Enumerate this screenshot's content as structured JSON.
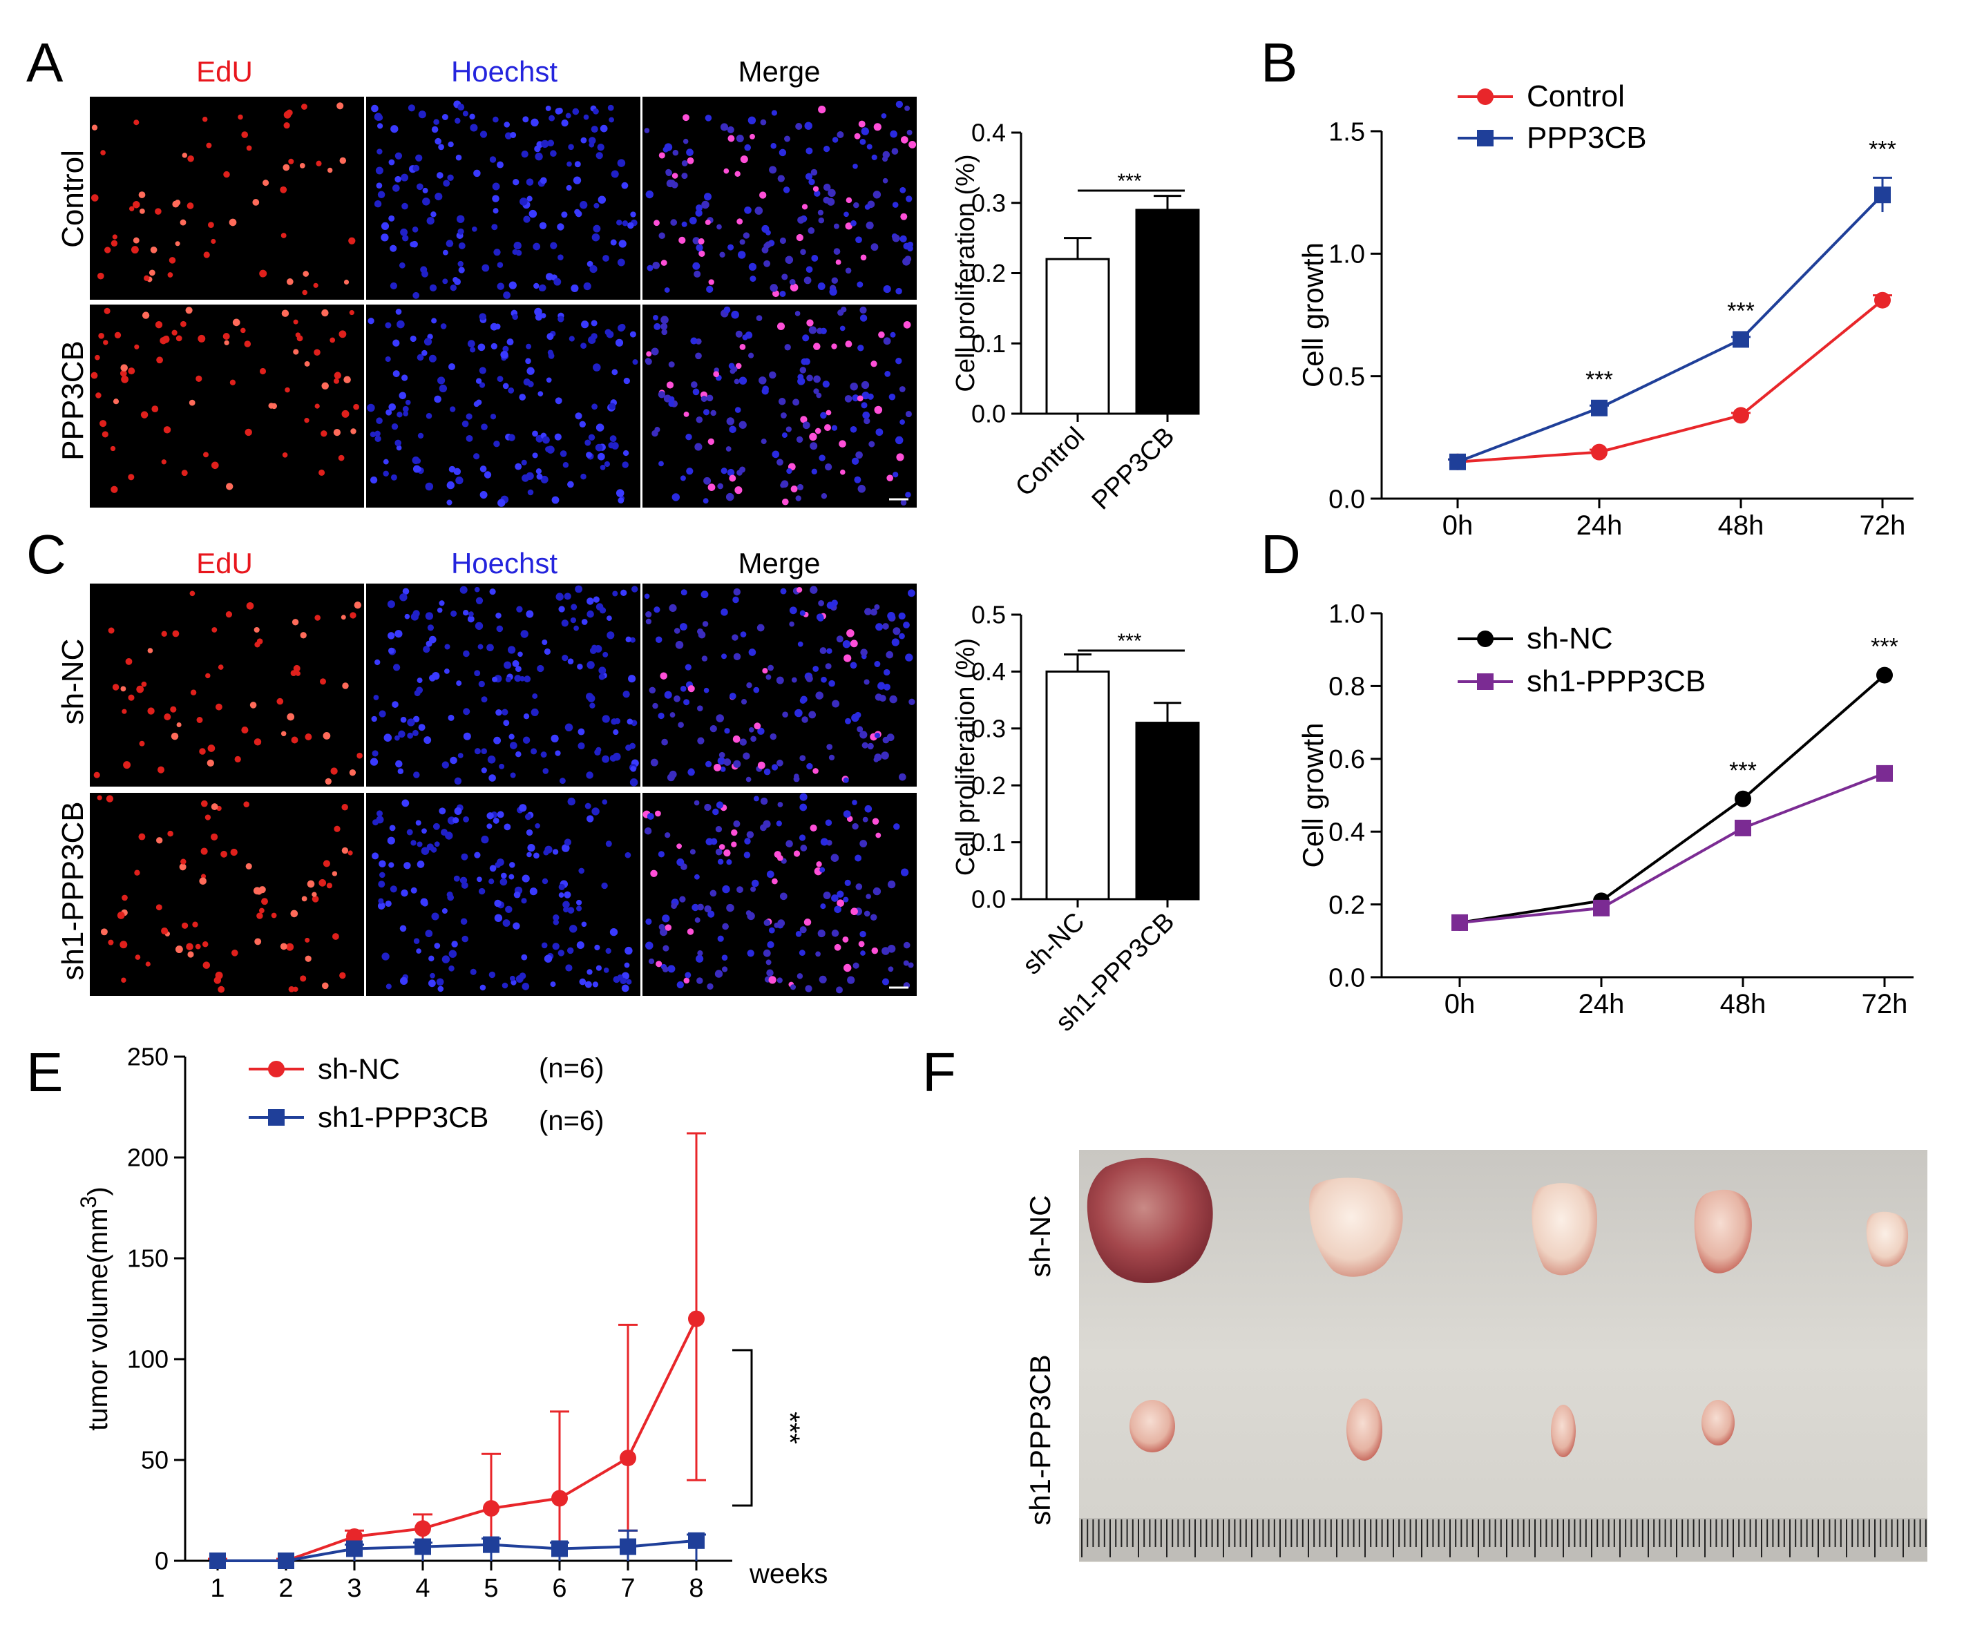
{
  "panels": {
    "A": {
      "letter": "A",
      "columns": [
        "EdU",
        "Hoechst",
        "Merge"
      ],
      "rows": [
        "Control",
        "PPP3CB"
      ],
      "colors": {
        "edu": "#e8161d",
        "hoechst": "#2222dd",
        "merge": "#000000"
      }
    },
    "C": {
      "letter": "C",
      "columns": [
        "EdU",
        "Hoechst",
        "Merge"
      ],
      "rows": [
        "sh-NC",
        "sh1-PPP3CB"
      ]
    },
    "F": {
      "letter": "F",
      "rows": [
        "sh-NC",
        "sh1-PPP3CB"
      ]
    }
  },
  "chart_data": [
    {
      "id": "A-bar",
      "type": "bar",
      "categories": [
        "Control",
        "PPP3CB"
      ],
      "values": [
        0.22,
        0.29
      ],
      "errors": [
        0.03,
        0.02
      ],
      "fills": [
        "#ffffff",
        "#000000"
      ],
      "ylabel": "Cell proliferation (%)",
      "ylim": [
        0,
        0.4
      ],
      "yticks": [
        0.0,
        0.1,
        0.2,
        0.3,
        0.4
      ],
      "ytick_labels": [
        "0.0",
        "0.1",
        "0.2",
        "0.3",
        "0.4"
      ],
      "significance": "***"
    },
    {
      "id": "B-line",
      "letter": "B",
      "type": "line",
      "x": [
        "0h",
        "24h",
        "48h",
        "72h"
      ],
      "series": [
        {
          "name": "Control",
          "values": [
            0.15,
            0.19,
            0.34,
            0.81
          ],
          "errors": [
            0.01,
            0.01,
            0.01,
            0.02
          ],
          "color": "#e8262a",
          "marker": "circle"
        },
        {
          "name": "PPP3CB",
          "values": [
            0.15,
            0.37,
            0.65,
            1.24
          ],
          "errors": [
            0.01,
            0.01,
            0.01,
            0.07
          ],
          "color": "#1f3f99",
          "marker": "square"
        }
      ],
      "ylabel": "Cell growth",
      "ylim": [
        0,
        1.5
      ],
      "yticks": [
        0.0,
        0.5,
        1.0,
        1.5
      ],
      "ytick_labels": [
        "0.0",
        "0.5",
        "1.0",
        "1.5"
      ],
      "annotations": [
        {
          "x": "24h",
          "y": 0.37,
          "text": "***"
        },
        {
          "x": "48h",
          "y": 0.65,
          "text": "***"
        },
        {
          "x": "72h",
          "y": 1.31,
          "text": "***"
        }
      ]
    },
    {
      "id": "C-bar",
      "type": "bar",
      "categories": [
        "sh-NC",
        "sh1-PPP3CB"
      ],
      "values": [
        0.4,
        0.31
      ],
      "errors": [
        0.03,
        0.035
      ],
      "fills": [
        "#ffffff",
        "#000000"
      ],
      "ylabel": "Cell proliferation (%)",
      "ylim": [
        0,
        0.5
      ],
      "yticks": [
        0.0,
        0.1,
        0.2,
        0.3,
        0.4,
        0.5
      ],
      "ytick_labels": [
        "0.0",
        "0.1",
        "0.2",
        "0.3",
        "0.4",
        "0.5"
      ],
      "significance": "***"
    },
    {
      "id": "D-line",
      "letter": "D",
      "type": "line",
      "x": [
        "0h",
        "24h",
        "48h",
        "72h"
      ],
      "series": [
        {
          "name": "sh-NC",
          "values": [
            0.15,
            0.21,
            0.49,
            0.83
          ],
          "errors": [
            0,
            0,
            0,
            0
          ],
          "color": "#000000",
          "marker": "circle"
        },
        {
          "name": "sh1-PPP3CB",
          "values": [
            0.15,
            0.19,
            0.41,
            0.56
          ],
          "errors": [
            0,
            0,
            0,
            0
          ],
          "color": "#7b2b93",
          "marker": "square"
        }
      ],
      "ylabel": "Cell growth",
      "ylim": [
        0,
        1.0
      ],
      "yticks": [
        0.0,
        0.2,
        0.4,
        0.6,
        0.8,
        1.0
      ],
      "ytick_labels": [
        "0.0",
        "0.2",
        "0.4",
        "0.6",
        "0.8",
        "1.0"
      ],
      "annotations": [
        {
          "x": "48h",
          "y": 0.49,
          "text": "***"
        },
        {
          "x": "72h",
          "y": 0.83,
          "text": "***"
        }
      ]
    },
    {
      "id": "E-line",
      "letter": "E",
      "type": "line",
      "x": [
        "1",
        "2",
        "3",
        "4",
        "5",
        "6",
        "7",
        "8"
      ],
      "series": [
        {
          "name": "sh-NC",
          "n_label": "(n=6)",
          "values": [
            0,
            0,
            12,
            16,
            26,
            31,
            51,
            120
          ],
          "errors": [
            1,
            1,
            3,
            7,
            27,
            43,
            66,
            92
          ],
          "errors_low": [
            0,
            0,
            0,
            0,
            0,
            0,
            15,
            40
          ],
          "color": "#e8262a",
          "marker": "circle"
        },
        {
          "name": "sh1-PPP3CB",
          "n_label": "(n=6)",
          "values": [
            0,
            0,
            6,
            7,
            8,
            6,
            7,
            10
          ],
          "errors": [
            0,
            0,
            2,
            2,
            3,
            3,
            8,
            3
          ],
          "errors_low": [
            0,
            0,
            0,
            0,
            0,
            0,
            0,
            0
          ],
          "color": "#1f3f99",
          "marker": "square"
        }
      ],
      "xlabel": "weeks",
      "ylabel": "tumor volume(mm",
      "ylabel_sup": "3",
      "ylabel_close": ")",
      "ylim": [
        0,
        250
      ],
      "yticks": [
        0,
        50,
        100,
        150,
        200,
        250
      ],
      "ytick_labels": [
        "0",
        "50",
        "100",
        "150",
        "200",
        "250"
      ],
      "significance": "***"
    }
  ]
}
